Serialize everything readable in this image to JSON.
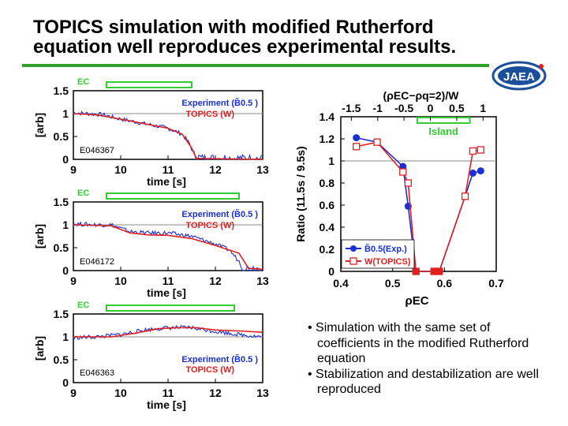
{
  "slide": {
    "title_line1": "TOPICS simulation with modified Rutherford",
    "title_line2": "equation well reproduces experimental results.",
    "logo_text": "JAEA"
  },
  "colors": {
    "exp": "#1a2fd6",
    "sim": "#e02020",
    "ec": "#33cc33",
    "accent": "#2ea02e",
    "grid": "#888888"
  },
  "bullets": [
    "• Simulation with the same set of coefficients in the modified Rutherford equation",
    "• Stabilization and destabilization are well reproduced"
  ],
  "chart_data": [
    {
      "type": "line",
      "id": "E046367",
      "ec_label": "EC",
      "ec_range": [
        9.7,
        11.5
      ],
      "xlabel": "time [s]",
      "ylabel": "[arb]",
      "xlim": [
        9,
        13
      ],
      "ylim": [
        0,
        1.5
      ],
      "xticks": [
        "9",
        "10",
        "11",
        "12",
        "13"
      ],
      "yticks": [
        "0",
        "0.5",
        "1",
        "1.5"
      ],
      "legend": [
        "Experiment (B̃0.5 )",
        "TOPICS (W)"
      ],
      "exp": [
        [
          9,
          1.02
        ],
        [
          9.6,
          0.98
        ],
        [
          10,
          0.88
        ],
        [
          10.5,
          0.78
        ],
        [
          11,
          0.68
        ],
        [
          11.3,
          0.55
        ],
        [
          11.45,
          0.35
        ],
        [
          11.55,
          0.1
        ],
        [
          11.7,
          0.03
        ],
        [
          13,
          0.02
        ]
      ],
      "sim": [
        [
          9,
          1.0
        ],
        [
          9.5,
          0.97
        ],
        [
          10,
          0.88
        ],
        [
          10.5,
          0.78
        ],
        [
          11,
          0.68
        ],
        [
          11.3,
          0.55
        ],
        [
          11.5,
          0.25
        ],
        [
          11.6,
          0.02
        ],
        [
          13,
          0.0
        ]
      ]
    },
    {
      "type": "line",
      "id": "E046172",
      "ec_label": "EC",
      "ec_range": [
        9.7,
        12.5
      ],
      "xlabel": "time [s]",
      "ylabel": "[arb]",
      "xlim": [
        9,
        13
      ],
      "ylim": [
        0,
        1.5
      ],
      "xticks": [
        "9",
        "10",
        "11",
        "12",
        "13"
      ],
      "yticks": [
        "0",
        "0.5",
        "1",
        "1.5"
      ],
      "legend": [
        "Experiment (B̃0.5 )",
        "TOPICS (W)"
      ],
      "exp": [
        [
          9,
          1.02
        ],
        [
          9.5,
          1.0
        ],
        [
          9.8,
          1.0
        ],
        [
          10.2,
          0.85
        ],
        [
          10.6,
          0.82
        ],
        [
          11.0,
          0.82
        ],
        [
          11.5,
          0.75
        ],
        [
          12,
          0.58
        ],
        [
          12.3,
          0.45
        ],
        [
          12.5,
          0.2
        ],
        [
          12.6,
          0.05
        ],
        [
          13,
          0.05
        ]
      ],
      "sim": [
        [
          9,
          1.0
        ],
        [
          9.8,
          0.98
        ],
        [
          10.2,
          0.82
        ],
        [
          10.6,
          0.78
        ],
        [
          11,
          0.77
        ],
        [
          11.5,
          0.7
        ],
        [
          12,
          0.55
        ],
        [
          12.5,
          0.38
        ],
        [
          12.7,
          0.05
        ],
        [
          13,
          0.03
        ]
      ]
    },
    {
      "type": "line",
      "id": "E046363",
      "ec_label": "EC",
      "ec_range": [
        9.7,
        12.4
      ],
      "xlabel": "time [s]",
      "ylabel": "[arb]",
      "xlim": [
        9,
        13
      ],
      "ylim": [
        0,
        1.5
      ],
      "xticks": [
        "9",
        "10",
        "11",
        "12",
        "13"
      ],
      "yticks": [
        "0",
        "0.5",
        "1",
        "1.5"
      ],
      "legend": [
        "Experiment (B̃0.5 )",
        "TOPICS (W)"
      ],
      "exp": [
        [
          9,
          0.98
        ],
        [
          9.5,
          1.0
        ],
        [
          10,
          1.05
        ],
        [
          10.5,
          1.15
        ],
        [
          11,
          1.2
        ],
        [
          11.5,
          1.2
        ],
        [
          12,
          1.12
        ],
        [
          12.5,
          1.05
        ],
        [
          13,
          1.0
        ]
      ],
      "sim": [
        [
          9,
          1.0
        ],
        [
          9.8,
          1.0
        ],
        [
          10.3,
          1.08
        ],
        [
          10.8,
          1.18
        ],
        [
          11.2,
          1.2
        ],
        [
          11.6,
          1.2
        ],
        [
          12,
          1.15
        ],
        [
          12.5,
          1.13
        ],
        [
          13,
          1.1
        ]
      ]
    },
    {
      "type": "scatter",
      "title": "(ρEC−ρq=2)/W",
      "xlabel": "ρEC",
      "ylabel": "Ratio (11.5s / 9.5s)",
      "xlim": [
        0.4,
        0.7
      ],
      "ylim": [
        0,
        1.4
      ],
      "xticks": [
        "0.4",
        "0.5",
        "0.6",
        "0.7"
      ],
      "yticks": [
        "0",
        "0.2",
        "0.4",
        "0.6",
        "0.8",
        "1",
        "1.2",
        "1.4"
      ],
      "top_range": [
        -1.7,
        1.25
      ],
      "top_ticks": [
        "-1.5",
        "-1",
        "-0.5",
        "0",
        "0.5",
        "1"
      ],
      "island_label": "Island",
      "island_range": [
        -0.25,
        0.75
      ],
      "series": [
        {
          "name": "B̃0.5(Exp.)",
          "marker": "filled",
          "x": [
            0.43,
            0.47,
            0.52,
            0.53,
            0.545,
            0.58,
            0.59,
            0.64,
            0.655,
            0.67
          ],
          "y": [
            1.21,
            1.17,
            0.95,
            0.59,
            0,
            0,
            0,
            0.68,
            0.89,
            0.91
          ]
        },
        {
          "name": "W(TOPICS)",
          "marker": "open",
          "x": [
            0.43,
            0.47,
            0.52,
            0.53,
            0.545,
            0.58,
            0.59,
            0.64,
            0.655,
            0.67
          ],
          "y": [
            1.13,
            1.17,
            0.9,
            0.8,
            0,
            0,
            0,
            0.68,
            1.09,
            1.1
          ]
        }
      ]
    }
  ]
}
